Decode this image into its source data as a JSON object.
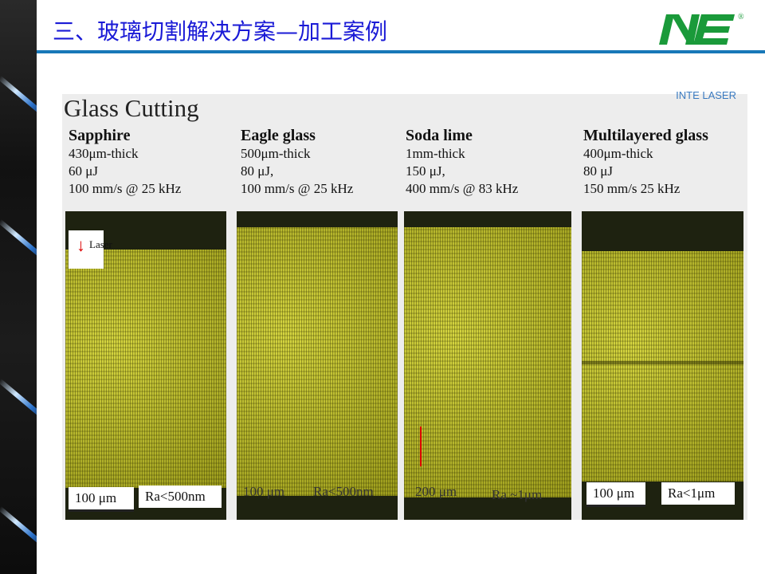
{
  "slide": {
    "title": "三、玻璃切割解决方案—加工案例",
    "logo_text": "INE",
    "logo_mark": "®",
    "accent": "#1878b8",
    "title_color": "#1a1ad6"
  },
  "figure": {
    "title": "Glass Cutting",
    "brand": "INTE LASER",
    "laser_label": "Laser",
    "samples": [
      {
        "name": "Sapphire",
        "thickness": "430μm-thick",
        "energy": "60 μJ",
        "speed": "100 mm/s @ 25 kHz",
        "scale": "100 μm",
        "roughness": "Ra<500nm"
      },
      {
        "name": "Eagle glass",
        "thickness": "500μm-thick",
        "energy": "80 μJ,",
        "speed": "100 mm/s @ 25 kHz",
        "scale": "100 μm",
        "roughness": "Ra<500nm"
      },
      {
        "name": "Soda lime",
        "thickness": "1mm-thick",
        "energy": "150 μJ,",
        "speed": "400 mm/s @ 83 kHz",
        "scale": "200 μm",
        "roughness": "Ra ~1μm"
      },
      {
        "name": "Multilayered glass",
        "thickness": "400μm-thick",
        "energy": "80 μJ",
        "speed": "150 mm/s 25 kHz",
        "scale": "100 μm",
        "roughness": "Ra<1μm"
      }
    ]
  }
}
